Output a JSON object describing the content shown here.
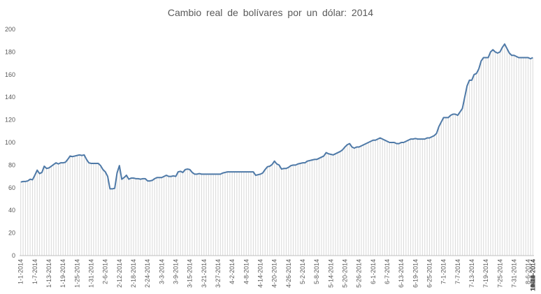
{
  "chart_data": {
    "type": "line",
    "title": "Cambio  real  de  bolívares  por  un  dólar:  2014",
    "xlabel": "",
    "ylabel": "",
    "ylim": [
      0,
      200
    ],
    "yticks": [
      0,
      20,
      40,
      60,
      80,
      100,
      120,
      140,
      160,
      180,
      200
    ],
    "grid": false,
    "legend": "none",
    "colors": {
      "line": "#4e79a7",
      "bars": "#d9d9d9",
      "text": "#595959",
      "axis": "#bfbfbf"
    },
    "x_tick_labels": [
      "1-1-2014",
      "1-7-2014",
      "1-13-2014",
      "1-19-2014",
      "1-25-2014",
      "1-31-2014",
      "2-6-2014",
      "2-12-2014",
      "2-18-2014",
      "2-24-2014",
      "3-3-2014",
      "3-9-2014",
      "3-15-2014",
      "3-21-2014",
      "3-27-2014",
      "4-2-2014",
      "4-8-2014",
      "4-14-2014",
      "4-20-2014",
      "4-26-2014",
      "5-2-2014",
      "5-8-2014",
      "5-14-2014",
      "5-20-2014",
      "5-26-2014",
      "6-1-2014",
      "6-7-2014",
      "6-13-2014",
      "6-19-2014",
      "6-25-2014",
      "7-1-2014",
      "7-7-2014",
      "7-13-2014",
      "7-19-2014",
      "7-25-2014",
      "7-31-2014",
      "8-6-2014",
      "8-12-2014",
      "8-18-2014",
      "8-24-2014",
      "8-30-2014",
      "9-5-2014",
      "9-11-2014",
      "9-17-2014",
      "9-23-2014",
      "9-29-2014",
      "10-5-2014",
      "10-11-2014",
      "10-17-2014",
      "10-23-2014",
      "10-29-2014",
      "11-4-2014",
      "11-10-2014",
      "11-16-2014",
      "11-22-2014",
      "11-28-2014",
      "12-4-2014",
      "12-10-2014",
      "12-16-2014",
      "12-22-2014",
      "12-28-2014"
    ],
    "series": [
      {
        "values": [
          65,
          65.5,
          65.5,
          66,
          67.5,
          67,
          71,
          75.5,
          72.5,
          73.5,
          79,
          77,
          77.5,
          79,
          80.5,
          82,
          81,
          82,
          82,
          82.5,
          85,
          88,
          87.5,
          88,
          88.5,
          89,
          88.5,
          89,
          85,
          82,
          81.5,
          81.5,
          81.5,
          81.5,
          79.5,
          76,
          74,
          70,
          59,
          59,
          59.5,
          73,
          79.5,
          67.5,
          69,
          71,
          67.5,
          68.5,
          68.5,
          68,
          68,
          67.5,
          68,
          68,
          66,
          66,
          66.5,
          68,
          69,
          69,
          69,
          70,
          71,
          70,
          70,
          70.5,
          70,
          74,
          74.5,
          73.5,
          76,
          76.5,
          76,
          73.5,
          72,
          72,
          72.5,
          72,
          72,
          72,
          72,
          72,
          72,
          72,
          72,
          72,
          73,
          73.5,
          74,
          74,
          74,
          74,
          74,
          74,
          74,
          74,
          74,
          74,
          74,
          74,
          71,
          71.5,
          72,
          73,
          76,
          78.5,
          79,
          80.5,
          83.5,
          81,
          80,
          76.5,
          77,
          77,
          78,
          79.5,
          80,
          80,
          81,
          81.5,
          82,
          82,
          83.5,
          84,
          84.5,
          85,
          85,
          86,
          87,
          88,
          91,
          90,
          89.5,
          89,
          90,
          91,
          92,
          93.5,
          96,
          98,
          99,
          96,
          95,
          96,
          96,
          97,
          98,
          99,
          100,
          101,
          102,
          102,
          103,
          104,
          103,
          102,
          101,
          100,
          100,
          100,
          99,
          99,
          100,
          100,
          101,
          102,
          103,
          103,
          103.5,
          103,
          103,
          103,
          103,
          104,
          104,
          105,
          106,
          108,
          114,
          118,
          122,
          122,
          122,
          124,
          125,
          125,
          124,
          127,
          130,
          140,
          150,
          155,
          155,
          160,
          161,
          165,
          172,
          175,
          175,
          175,
          180,
          182,
          180,
          179,
          180,
          184,
          187,
          183,
          179,
          177,
          177,
          176,
          175,
          175,
          175,
          175,
          175,
          174,
          175
        ]
      }
    ]
  }
}
